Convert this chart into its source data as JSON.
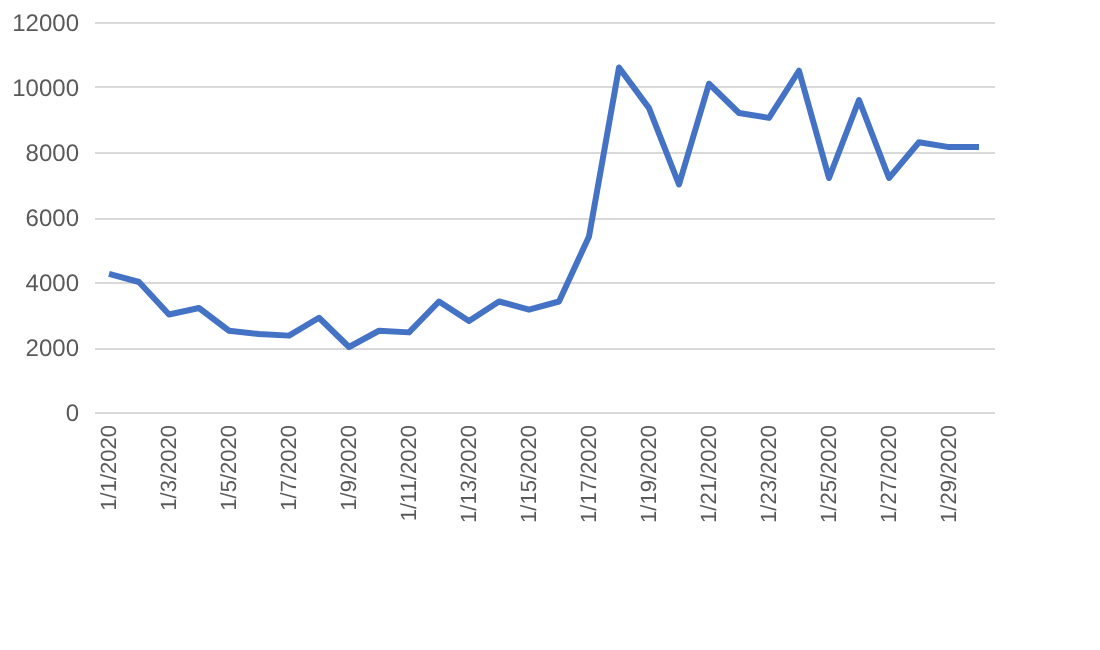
{
  "chart_data": {
    "type": "line",
    "categories": [
      "1/1/2020",
      null,
      "1/3/2020",
      null,
      "1/5/2020",
      null,
      "1/7/2020",
      null,
      "1/9/2020",
      null,
      "1/11/2020",
      null,
      "1/13/2020",
      null,
      "1/15/2020",
      null,
      "1/17/2020",
      null,
      "1/19/2020",
      null,
      "1/21/2020",
      null,
      "1/23/2020",
      null,
      "1/25/2020",
      null,
      "1/27/2020",
      null,
      "1/29/2020",
      null
    ],
    "series": [
      {
        "color": "#4472c4",
        "values": [
          4250,
          4000,
          3000,
          3200,
          2500,
          2400,
          2350,
          2900,
          2000,
          2500,
          2450,
          3400,
          2800,
          3400,
          3150,
          3400,
          5400,
          10600,
          9350,
          7000,
          10100,
          9200,
          9050,
          10500,
          7200,
          9600,
          7200,
          8300,
          8150,
          8150
        ]
      }
    ],
    "ylim": [
      0,
      12000
    ],
    "yticks": [
      0,
      2000,
      4000,
      6000,
      8000,
      10000,
      12000
    ],
    "grid": "y",
    "legend": false,
    "marker": "none",
    "line_style": "solid"
  }
}
